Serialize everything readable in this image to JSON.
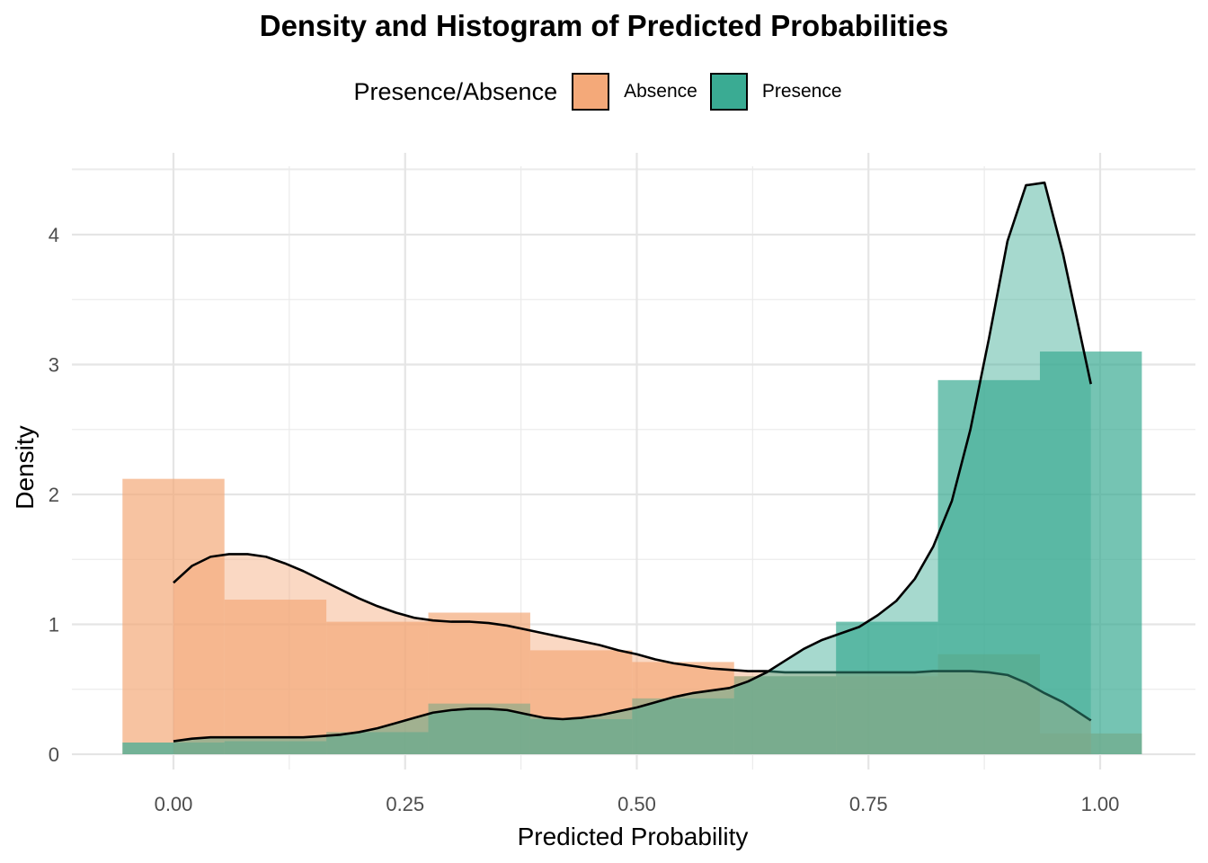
{
  "chart_data": {
    "type": "histogram+density",
    "title": "Density and Histogram of Predicted Probabilities",
    "xlabel": "Predicted Probability",
    "ylabel": "Density",
    "xlim": [
      -0.075,
      1.075
    ],
    "ylim": [
      0,
      4.5
    ],
    "x_ticks": [
      "0.00",
      "0.25",
      "0.50",
      "0.75",
      "1.00"
    ],
    "x_tick_values": [
      0,
      0.25,
      0.5,
      0.75,
      1.0
    ],
    "y_ticks": [
      "0",
      "1",
      "2",
      "3",
      "4"
    ],
    "y_tick_values": [
      0,
      1,
      2,
      3,
      4
    ],
    "grid": true,
    "legend": {
      "title": "Presence/Absence",
      "placement": "top",
      "items": [
        {
          "label": "Absence",
          "color": "#F4A979"
        },
        {
          "label": "Presence",
          "color": "#3AAB93"
        }
      ]
    },
    "bin_edges": [
      -0.055,
      0.055,
      0.165,
      0.275,
      0.385,
      0.495,
      0.605,
      0.715,
      0.825,
      0.935,
      1.045
    ],
    "series": [
      {
        "name": "Absence",
        "color": "#F4A979",
        "histogram": [
          2.12,
          1.19,
          1.02,
          1.09,
          0.8,
          0.71,
          0.6,
          0.6,
          0.77,
          0.16
        ],
        "density": {
          "x": [
            0.0,
            0.02,
            0.04,
            0.06,
            0.08,
            0.1,
            0.12,
            0.14,
            0.16,
            0.18,
            0.2,
            0.22,
            0.24,
            0.26,
            0.28,
            0.3,
            0.32,
            0.34,
            0.36,
            0.38,
            0.4,
            0.42,
            0.44,
            0.46,
            0.48,
            0.5,
            0.52,
            0.54,
            0.56,
            0.58,
            0.6,
            0.62,
            0.64,
            0.66,
            0.68,
            0.7,
            0.72,
            0.74,
            0.76,
            0.78,
            0.8,
            0.82,
            0.84,
            0.86,
            0.88,
            0.9,
            0.92,
            0.94,
            0.96,
            0.99
          ],
          "y": [
            1.32,
            1.45,
            1.52,
            1.54,
            1.54,
            1.52,
            1.47,
            1.41,
            1.34,
            1.27,
            1.2,
            1.14,
            1.09,
            1.05,
            1.03,
            1.02,
            1.02,
            1.01,
            0.99,
            0.96,
            0.93,
            0.9,
            0.87,
            0.84,
            0.8,
            0.77,
            0.73,
            0.7,
            0.68,
            0.66,
            0.65,
            0.64,
            0.64,
            0.63,
            0.63,
            0.63,
            0.63,
            0.63,
            0.63,
            0.63,
            0.63,
            0.64,
            0.64,
            0.64,
            0.63,
            0.61,
            0.55,
            0.47,
            0.4,
            0.26
          ]
        }
      },
      {
        "name": "Presence",
        "color": "#3AAB93",
        "histogram": [
          0.09,
          0.1,
          0.17,
          0.39,
          0.27,
          0.43,
          0.6,
          1.02,
          2.88,
          3.1
        ],
        "density": {
          "x": [
            0.0,
            0.02,
            0.04,
            0.06,
            0.08,
            0.1,
            0.12,
            0.14,
            0.16,
            0.18,
            0.2,
            0.22,
            0.24,
            0.26,
            0.28,
            0.3,
            0.32,
            0.34,
            0.36,
            0.38,
            0.4,
            0.42,
            0.44,
            0.46,
            0.48,
            0.5,
            0.52,
            0.54,
            0.56,
            0.58,
            0.6,
            0.62,
            0.64,
            0.66,
            0.68,
            0.7,
            0.72,
            0.74,
            0.76,
            0.78,
            0.8,
            0.82,
            0.84,
            0.86,
            0.88,
            0.9,
            0.92,
            0.94,
            0.96,
            0.99
          ],
          "y": [
            0.1,
            0.12,
            0.13,
            0.13,
            0.13,
            0.13,
            0.13,
            0.13,
            0.14,
            0.15,
            0.17,
            0.2,
            0.24,
            0.28,
            0.32,
            0.34,
            0.35,
            0.35,
            0.34,
            0.31,
            0.28,
            0.27,
            0.28,
            0.3,
            0.33,
            0.36,
            0.4,
            0.44,
            0.47,
            0.49,
            0.51,
            0.56,
            0.63,
            0.72,
            0.81,
            0.88,
            0.93,
            0.98,
            1.07,
            1.18,
            1.35,
            1.6,
            1.95,
            2.5,
            3.2,
            3.95,
            4.38,
            4.4,
            3.85,
            2.85
          ]
        }
      }
    ]
  }
}
